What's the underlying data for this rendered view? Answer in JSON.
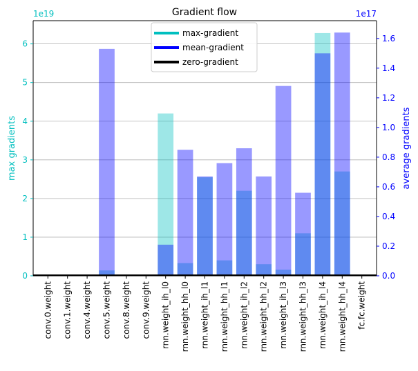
{
  "chart_data": {
    "type": "bar",
    "title": "Gradient flow",
    "xlabel": "",
    "categories": [
      "conv.0.weight",
      "conv.1.weight",
      "conv.4.weight",
      "conv.5.weight",
      "conv.8.weight",
      "conv.9.weight",
      "rnn.weight_ih_l0",
      "rnn.weight_hh_l0",
      "rnn.weight_ih_l1",
      "rnn.weight_hh_l1",
      "rnn.weight_ih_l2",
      "rnn.weight_hh_l2",
      "rnn.weight_ih_l3",
      "rnn.weight_hh_l3",
      "rnn.weight_ih_l4",
      "rnn.weight_hh_l4",
      "fc.fc.weight"
    ],
    "y_left": {
      "label": "max gradients",
      "offset_text": "1e19",
      "ylim": [
        0,
        6.6
      ],
      "ticks": [
        0,
        1,
        2,
        3,
        4,
        5,
        6
      ],
      "color": "#00bfbf"
    },
    "y_right": {
      "label": "average gradients",
      "offset_text": "1e17",
      "ylim": [
        0,
        1.72
      ],
      "ticks": [
        0.0,
        0.2,
        0.4,
        0.6,
        0.8,
        1.0,
        1.2,
        1.4,
        1.6
      ],
      "color": "#0000ff"
    },
    "series": [
      {
        "name": "max-gradient",
        "axis": "left",
        "color": "#00bfbf",
        "values": [
          0,
          0,
          0,
          0.14,
          0,
          0,
          4.2,
          0.33,
          2.55,
          0.4,
          2.2,
          0.3,
          0.16,
          1.1,
          6.28,
          2.7,
          0
        ]
      },
      {
        "name": "mean-gradient",
        "axis": "right",
        "color": "#0000ff",
        "values": [
          0,
          0,
          0,
          1.53,
          0,
          0,
          0.21,
          0.85,
          0.67,
          0.76,
          0.86,
          0.67,
          1.28,
          0.56,
          1.5,
          1.64,
          0
        ]
      }
    ],
    "legend": {
      "position": "top-center",
      "entries": [
        {
          "label": "max-gradient",
          "color": "#00bfbf"
        },
        {
          "label": "mean-gradient",
          "color": "#0000ff"
        },
        {
          "label": "zero-gradient",
          "color": "#000000"
        }
      ]
    },
    "grid": "horizontal-left"
  }
}
